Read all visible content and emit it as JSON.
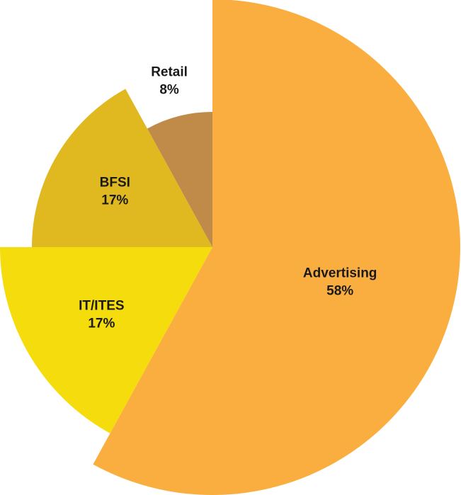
{
  "chart_data": {
    "type": "pie",
    "variant": "variable-radius",
    "title": "",
    "start_angle": "top, clockwise",
    "slices": [
      {
        "label": "Advertising",
        "value": 58,
        "value_label": "58%",
        "color": "#FBAE40"
      },
      {
        "label": "IT/ITES",
        "value": 17,
        "value_label": "17%",
        "color": "#F5DC0C"
      },
      {
        "label": "BFSI",
        "value": 17,
        "value_label": "17%",
        "color": "#E0B820"
      },
      {
        "label": "Retail",
        "value": 8,
        "value_label": "8%",
        "color": "#C08B48"
      }
    ]
  }
}
